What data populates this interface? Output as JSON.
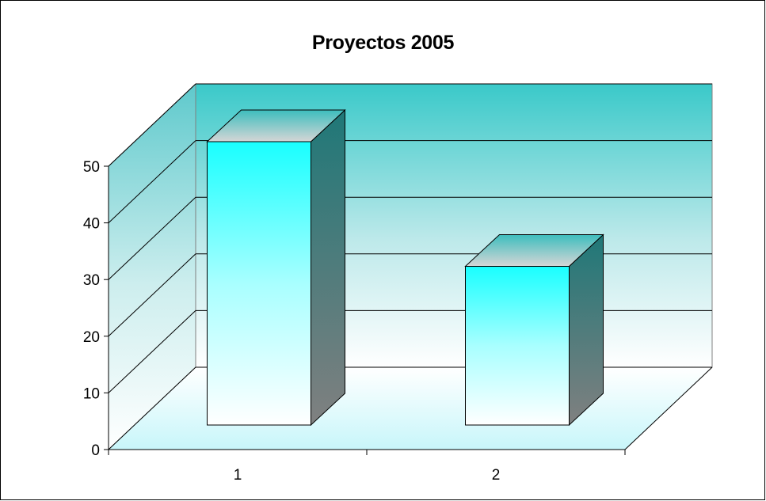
{
  "chart_data": {
    "type": "bar",
    "style": "3d-column",
    "title": "Proyectos 2005",
    "categories": [
      "1",
      "2"
    ],
    "values": [
      50,
      28
    ],
    "ylim": [
      0,
      50
    ],
    "yticks": [
      0,
      10,
      20,
      30,
      40,
      50
    ],
    "xlabel": "",
    "ylabel": "",
    "grid": true,
    "legend": "none",
    "colors": {
      "bar_top": "#19ffff",
      "bar_bottom": "#ffffff",
      "bar_side_top": "#1f7878",
      "bar_side_bottom": "#808080",
      "wall_top": "#3ac9c9",
      "wall_bottom": "#ffffff",
      "floor": "#d4f7fa"
    }
  }
}
